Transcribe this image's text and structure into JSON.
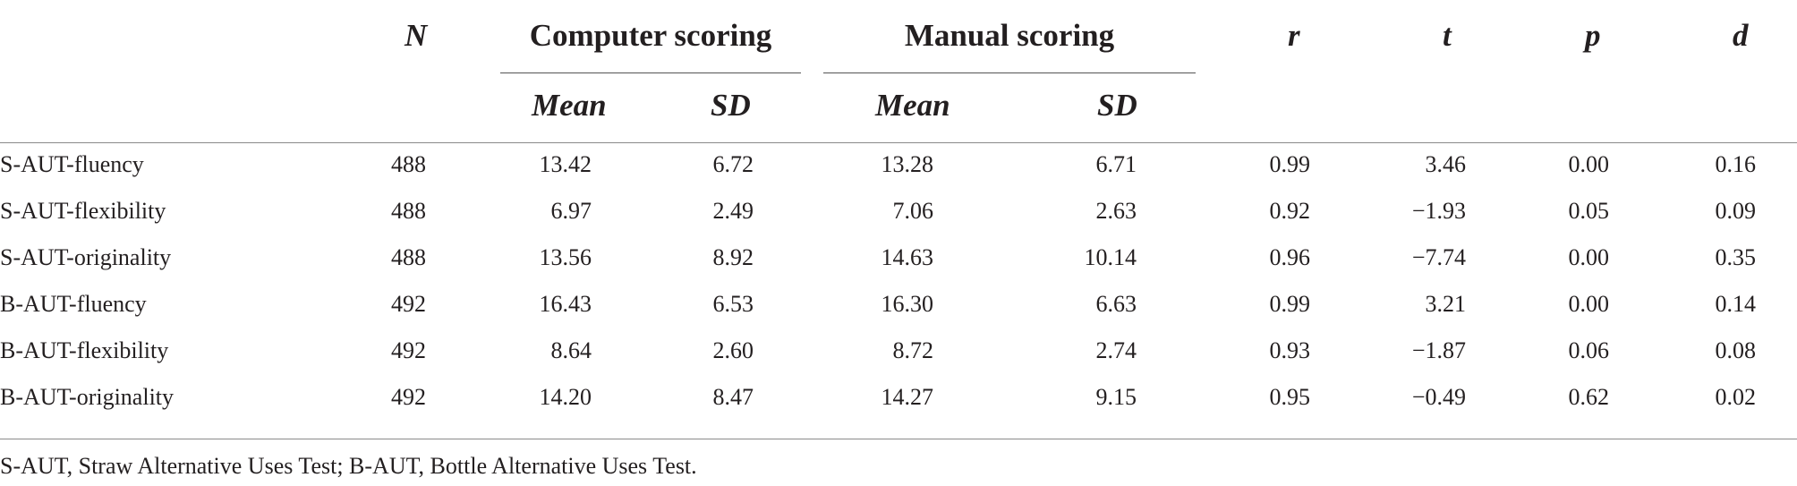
{
  "table": {
    "header": {
      "n": "N",
      "group_computer": "Computer scoring",
      "group_manual": "Manual scoring",
      "r": "r",
      "t": "t",
      "p": "p",
      "d": "d",
      "computer_mean": "Mean",
      "computer_sd": "SD",
      "manual_mean": "Mean",
      "manual_sd": "SD"
    },
    "rows": [
      {
        "label": "S-AUT-fluency",
        "n": "488",
        "cm": "13.42",
        "csd": "6.72",
        "mm": "13.28",
        "msd": "6.71",
        "r": "0.99",
        "t": "3.46",
        "p": "0.00",
        "d": "0.16"
      },
      {
        "label": "S-AUT-flexibility",
        "n": "488",
        "cm": "6.97",
        "csd": "2.49",
        "mm": "7.06",
        "msd": "2.63",
        "r": "0.92",
        "t": "−1.93",
        "p": "0.05",
        "d": "0.09"
      },
      {
        "label": "S-AUT-originality",
        "n": "488",
        "cm": "13.56",
        "csd": "8.92",
        "mm": "14.63",
        "msd": "10.14",
        "r": "0.96",
        "t": "−7.74",
        "p": "0.00",
        "d": "0.35"
      },
      {
        "label": "B-AUT-fluency",
        "n": "492",
        "cm": "16.43",
        "csd": "6.53",
        "mm": "16.30",
        "msd": "6.63",
        "r": "0.99",
        "t": "3.21",
        "p": "0.00",
        "d": "0.14"
      },
      {
        "label": "B-AUT-flexibility",
        "n": "492",
        "cm": "8.64",
        "csd": "2.60",
        "mm": "8.72",
        "msd": "2.74",
        "r": "0.93",
        "t": "−1.87",
        "p": "0.06",
        "d": "0.08"
      },
      {
        "label": "B-AUT-originality",
        "n": "492",
        "cm": "14.20",
        "csd": "8.47",
        "mm": "14.27",
        "msd": "9.15",
        "r": "0.95",
        "t": "−0.49",
        "p": "0.62",
        "d": "0.02"
      }
    ],
    "footnote": "S-AUT, Straw Alternative Uses Test; B-AUT, Bottle Alternative Uses Test."
  }
}
